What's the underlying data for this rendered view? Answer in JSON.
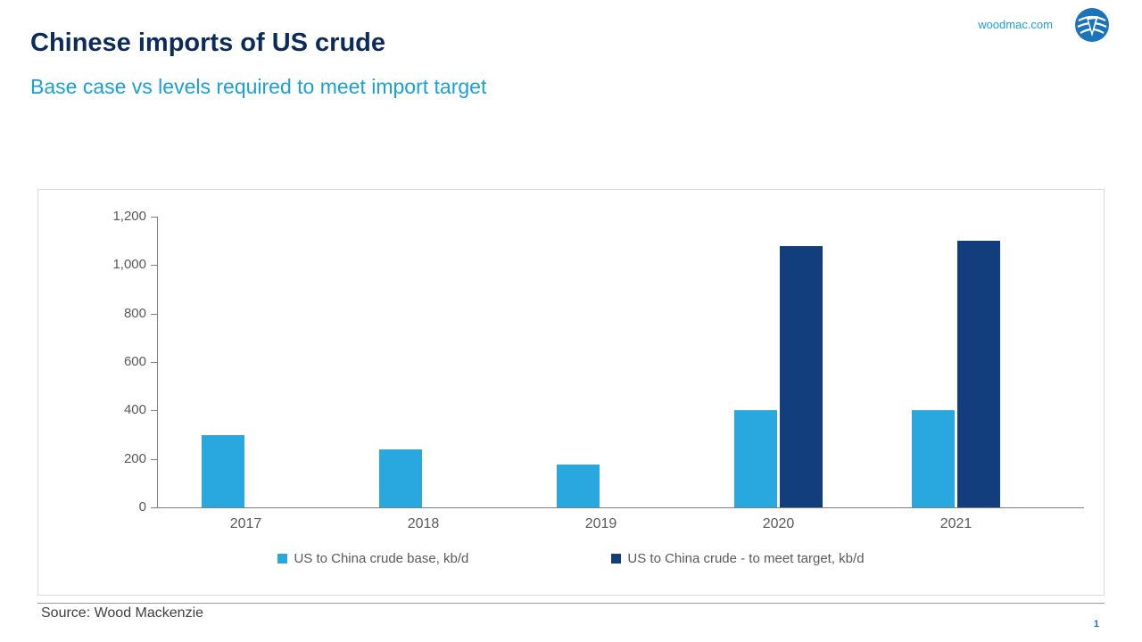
{
  "header": {
    "title": "Chinese imports of US crude",
    "subtitle": "Base case vs levels required to meet import target",
    "site": "woodmac.com"
  },
  "footer": {
    "source": "Source: Wood Mackenzie",
    "page_number": "1"
  },
  "colors": {
    "title_navy": "#0b2b5c",
    "accent_blue": "#1a9fd9",
    "base_bar_blue": "#29a8e0",
    "target_bar_navy": "#123e7e",
    "axis_gray": "#595959"
  },
  "chart_data": {
    "type": "bar",
    "categories": [
      "2017",
      "2018",
      "2019",
      "2020",
      "2021"
    ],
    "series": [
      {
        "name": "US to China crude base, kb/d",
        "color": "#29a8e0",
        "values": [
          300,
          240,
          175,
          400,
          400
        ]
      },
      {
        "name": "US to China crude - to meet target, kb/d",
        "color": "#123e7e",
        "values": [
          0,
          0,
          0,
          1080,
          1100
        ]
      }
    ],
    "title": "",
    "xlabel": "",
    "ylabel": "",
    "ylim": [
      0,
      1200
    ],
    "ytick_step": 200,
    "ytick_labels": [
      "0",
      "200",
      "400",
      "600",
      "800",
      "1,000",
      "1,200"
    ],
    "grid": false,
    "legend_position": "bottom"
  }
}
